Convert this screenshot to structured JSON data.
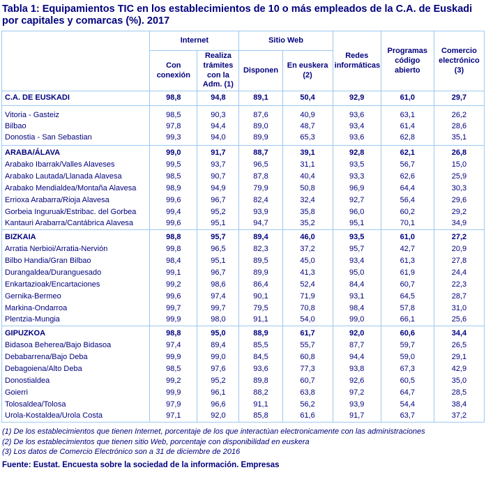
{
  "colors": {
    "text": "#00007D",
    "border": "#9CC8EE",
    "background": "#FFFFFF"
  },
  "chart_data": {
    "type": "table",
    "title": "Tabla 1: Equipamientos TIC en los establecimientos de 10 o más empleados de la C.A. de Euskadi por capitales y comarcas (%). 2017",
    "unit": "%",
    "column_groups": [
      {
        "label": "Internet",
        "span": 2
      },
      {
        "label": "Sitio Web",
        "span": 2
      }
    ],
    "columns": [
      "Con conexión",
      "Realiza trámites con la Adm. (1)",
      "Disponen",
      "En euskera (2)",
      "Redes informáticas",
      "Programas código abierto",
      "Comercio electrónico (3)"
    ],
    "groups": [
      {
        "rows": [
          {
            "label": "C.A. DE EUSKADI",
            "bold": true,
            "values": [
              "98,8",
              "94,8",
              "89,1",
              "50,4",
              "92,9",
              "61,0",
              "29,7"
            ]
          }
        ]
      },
      {
        "rows": [
          {
            "label": "Vitoria - Gasteiz",
            "bold": false,
            "values": [
              "98,5",
              "90,3",
              "87,6",
              "40,9",
              "93,6",
              "63,1",
              "26,2"
            ]
          },
          {
            "label": "Bilbao",
            "bold": false,
            "values": [
              "97,8",
              "94,4",
              "89,0",
              "48,7",
              "93,4",
              "61,4",
              "28,6"
            ]
          },
          {
            "label": "Donostia - San Sebastian",
            "bold": false,
            "values": [
              "99,3",
              "94,0",
              "89,9",
              "65,3",
              "93,6",
              "62,8",
              "35,1"
            ]
          }
        ]
      },
      {
        "rows": [
          {
            "label": "ARABA/ÁLAVA",
            "bold": true,
            "values": [
              "99,0",
              "91,7",
              "88,7",
              "39,1",
              "92,8",
              "62,1",
              "26,8"
            ]
          },
          {
            "label": "Arabako Ibarrak/Valles Alaveses",
            "bold": false,
            "values": [
              "99,5",
              "93,7",
              "96,5",
              "31,1",
              "93,5",
              "56,7",
              "15,0"
            ]
          },
          {
            "label": "Arabako Lautada/Llanada Alavesa",
            "bold": false,
            "values": [
              "98,5",
              "90,7",
              "87,8",
              "40,4",
              "93,3",
              "62,6",
              "25,9"
            ]
          },
          {
            "label": "Arabako Mendialdea/Montaña Alavesa",
            "bold": false,
            "values": [
              "98,9",
              "94,9",
              "79,9",
              "50,8",
              "96,9",
              "64,4",
              "30,3"
            ]
          },
          {
            "label": "Errioxa Arabarra/Rioja Alavesa",
            "bold": false,
            "values": [
              "99,6",
              "96,7",
              "82,4",
              "32,4",
              "92,7",
              "56,4",
              "29,6"
            ]
          },
          {
            "label": "Gorbeia Inguruak/Estribac. del Gorbea",
            "bold": false,
            "values": [
              "99,4",
              "95,2",
              "93,9",
              "35,8",
              "96,0",
              "60,2",
              "29,2"
            ]
          },
          {
            "label": "Kantauri Arabarra/Cantábrica Alavesa",
            "bold": false,
            "values": [
              "99,6",
              "95,1",
              "94,7",
              "35,2",
              "95,1",
              "70,1",
              "34,9"
            ]
          }
        ]
      },
      {
        "rows": [
          {
            "label": "BIZKAIA",
            "bold": true,
            "values": [
              "98,8",
              "95,7",
              "89,4",
              "46,0",
              "93,5",
              "61,0",
              "27,2"
            ]
          },
          {
            "label": "Arratia Nerbioi/Arratia-Nervión",
            "bold": false,
            "values": [
              "99,8",
              "96,5",
              "82,3",
              "37,2",
              "95,7",
              "42,7",
              "20,9"
            ]
          },
          {
            "label": "Bilbo Handia/Gran Bilbao",
            "bold": false,
            "values": [
              "98,4",
              "95,1",
              "89,5",
              "45,0",
              "93,4",
              "61,3",
              "27,8"
            ]
          },
          {
            "label": "Durangaldea/Duranguesado",
            "bold": false,
            "values": [
              "99,1",
              "96,7",
              "89,9",
              "41,3",
              "95,0",
              "61,9",
              "24,4"
            ]
          },
          {
            "label": "Enkartazioak/Encartaciones",
            "bold": false,
            "values": [
              "99,2",
              "98,6",
              "86,4",
              "52,4",
              "84,4",
              "60,7",
              "22,3"
            ]
          },
          {
            "label": "Gernika-Bermeo",
            "bold": false,
            "values": [
              "99,6",
              "97,4",
              "90,1",
              "71,9",
              "93,1",
              "64,5",
              "28,7"
            ]
          },
          {
            "label": "Markina-Ondarroa",
            "bold": false,
            "values": [
              "99,7",
              "99,7",
              "79,5",
              "70,8",
              "98,4",
              "57,8",
              "31,0"
            ]
          },
          {
            "label": "Plentzia-Mungia",
            "bold": false,
            "values": [
              "99,9",
              "98,0",
              "91,1",
              "54,0",
              "99,0",
              "66,1",
              "25,6"
            ]
          }
        ]
      },
      {
        "rows": [
          {
            "label": "GIPUZKOA",
            "bold": true,
            "values": [
              "98,8",
              "95,0",
              "88,9",
              "61,7",
              "92,0",
              "60,6",
              "34,4"
            ]
          },
          {
            "label": "Bidasoa Beherea/Bajo Bidasoa",
            "bold": false,
            "values": [
              "97,4",
              "89,4",
              "85,5",
              "55,7",
              "87,7",
              "59,7",
              "26,5"
            ]
          },
          {
            "label": "Debabarrena/Bajo Deba",
            "bold": false,
            "values": [
              "99,9",
              "99,0",
              "84,5",
              "60,8",
              "94,4",
              "59,0",
              "29,1"
            ]
          },
          {
            "label": "Debagoiena/Alto Deba",
            "bold": false,
            "values": [
              "98,5",
              "97,6",
              "93,6",
              "77,3",
              "93,8",
              "67,3",
              "42,9"
            ]
          },
          {
            "label": "Donostialdea",
            "bold": false,
            "values": [
              "99,2",
              "95,2",
              "89,8",
              "60,7",
              "92,6",
              "60,5",
              "35,0"
            ]
          },
          {
            "label": "Goierri",
            "bold": false,
            "values": [
              "99,9",
              "96,1",
              "88,2",
              "63,8",
              "97,2",
              "64,7",
              "28,5"
            ]
          },
          {
            "label": "Tolosaldea/Tolosa",
            "bold": false,
            "values": [
              "97,9",
              "96,6",
              "91,1",
              "56,2",
              "93,9",
              "54,4",
              "38,4"
            ]
          },
          {
            "label": "Urola-Kostaldea/Urola Costa",
            "bold": false,
            "values": [
              "97,1",
              "92,0",
              "85,8",
              "61,6",
              "91,7",
              "63,7",
              "37,2"
            ]
          }
        ]
      }
    ],
    "footnotes": [
      "(1) De los establecimientos que tienen Internet, porcentaje de los que interactúan electronicamente con las administraciones",
      "(2) De los establecimientos que tienen sitio Web, porcentaje con disponibilidad en euskera",
      "(3) Los datos de Comercio Electrónico son a 31 de diciembre de 2016"
    ],
    "source": "Fuente: Eustat. Encuesta sobre la sociedad de la información. Empresas"
  }
}
